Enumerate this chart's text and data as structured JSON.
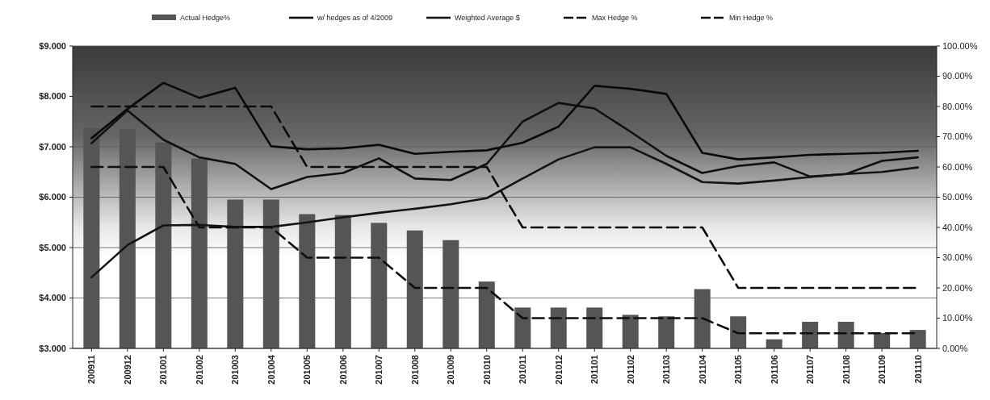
{
  "chart_data": {
    "type": "bar",
    "categories": [
      "200911",
      "200912",
      "201001",
      "201002",
      "201003",
      "201004",
      "201005",
      "201006",
      "201007",
      "201008",
      "201009",
      "201010",
      "201011",
      "201012",
      "201101",
      "201102",
      "201103",
      "201104",
      "201105",
      "201106",
      "201107",
      "201108",
      "201109",
      "201110"
    ],
    "series": [
      {
        "name": "Actual Hedge%",
        "axis": "y2",
        "color": "#555555",
        "values": [
          72.9,
          72.4,
          68.1,
          62.8,
          49.2,
          49.2,
          44.4,
          44.1,
          41.5,
          39.0,
          35.8,
          22.1,
          13.5,
          13.5,
          13.5,
          11.1,
          10.6,
          19.6,
          10.6,
          3,
          8.8,
          8.8,
          5.1,
          6.1
        ]
      },
      {
        "type": "line",
        "color": "#0a0a0a",
        "line_style": "solid",
        "values": [
          7.17,
          7.75,
          8.27,
          7.97,
          8.17,
          7.01,
          6.95,
          6.97,
          7.04,
          6.86,
          6.9,
          6.93,
          7.08,
          7.4,
          8.21,
          8.15,
          8.05,
          6.88,
          6.75,
          6.79,
          6.84,
          6.86,
          6.88,
          6.92
        ]
      },
      {
        "name": "w/ hedges as of 4/2009",
        "type": "line",
        "color": "#101010",
        "line_style": "solid",
        "values": [
          7.07,
          7.72,
          7.14,
          6.79,
          6.66,
          6.16,
          6.4,
          6.48,
          6.77,
          6.37,
          6.34,
          6.66,
          7.5,
          7.87,
          7.76,
          7.3,
          6.82,
          6.48,
          6.62,
          6.69,
          6.41,
          6.46,
          6.72,
          6.79
        ]
      },
      {
        "name": "Weighted Average $",
        "type": "line",
        "color": "#141414",
        "line_style": "solid",
        "values": [
          4.41,
          5.05,
          5.44,
          5.45,
          5.41,
          5.41,
          5.5,
          5.6,
          5.69,
          5.77,
          5.86,
          5.98,
          6.37,
          6.75,
          6.99,
          6.99,
          6.66,
          6.3,
          6.27,
          6.33,
          6.4,
          6.46,
          6.5,
          6.59
        ]
      },
      {
        "name": "Max Hedge %",
        "type": "line",
        "axis": "y2",
        "color": "#0c0c0c",
        "line_style": "dashed",
        "values": [
          80,
          80,
          80,
          80,
          80,
          80,
          60,
          60,
          60,
          60,
          60,
          60,
          40,
          40,
          40,
          40,
          40,
          40,
          20,
          20,
          20,
          20,
          20,
          20
        ]
      },
      {
        "name": "Min Hedge %",
        "type": "line",
        "axis": "y2",
        "color": "#0e0e0e",
        "line_style": "dashed",
        "values": [
          60,
          60,
          60,
          40,
          40,
          40,
          30,
          30,
          30,
          20,
          20,
          20,
          10,
          10,
          10,
          10,
          10,
          10,
          5,
          5,
          5,
          5,
          5,
          5
        ]
      }
    ],
    "ylim": [
      3,
      9
    ],
    "yticks": [
      {
        "value": 3,
        "label": "$3.000"
      },
      {
        "value": 4,
        "label": "$4.000"
      },
      {
        "value": 5,
        "label": "$5.000"
      },
      {
        "value": 6,
        "label": "$6.000"
      },
      {
        "value": 7,
        "label": "$7.000"
      },
      {
        "value": 8,
        "label": "$8.000"
      },
      {
        "value": 9,
        "label": "$9.000"
      }
    ],
    "y2lim": [
      0,
      100
    ],
    "y2ticks": [
      {
        "value": 0,
        "label": "0.00%"
      },
      {
        "value": 10,
        "label": "10.00%"
      },
      {
        "value": 20,
        "label": "20.00%"
      },
      {
        "value": 30,
        "label": "30.00%"
      },
      {
        "value": 40,
        "label": "40.00%"
      },
      {
        "value": 50,
        "label": "50.00%"
      },
      {
        "value": 60,
        "label": "60.00%"
      },
      {
        "value": 70,
        "label": "70.00%"
      },
      {
        "value": 80,
        "label": "80.00%"
      },
      {
        "value": 90,
        "label": "90.00%"
      },
      {
        "value": 100,
        "label": "100.00%"
      }
    ],
    "grid": "y",
    "legend": "top"
  }
}
